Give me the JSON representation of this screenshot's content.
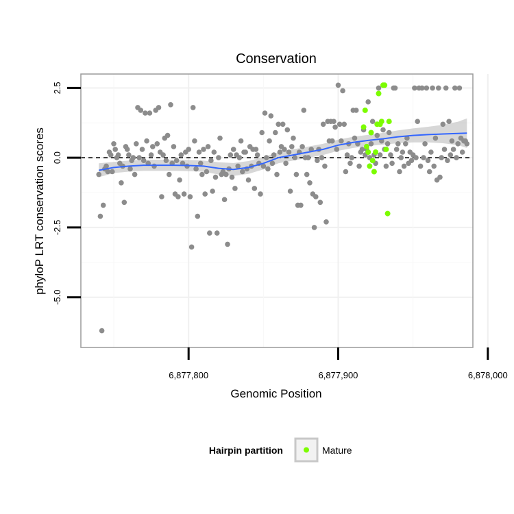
{
  "chart_data": {
    "type": "scatter",
    "title": "Conservation",
    "xlabel": "Genomic Position",
    "ylabel": "phyloP LRT conservation scores",
    "xlim": [
      6877728,
      6877990
    ],
    "ylim": [
      -6.8,
      3.0
    ],
    "x_ticks": [
      6877800,
      6877900,
      6878000
    ],
    "x_tick_labels": [
      "6,877,800",
      "6,877,900",
      "6,878,000"
    ],
    "y_ticks": [
      2.5,
      0.0,
      -2.5,
      -5.0
    ],
    "y_tick_labels": [
      "2.5",
      "0.0",
      "-2.5",
      "-5.0"
    ],
    "grid": true,
    "reference_line": {
      "y": 0,
      "style": "dashed",
      "color": "#000000"
    },
    "legend": {
      "title": "Hairpin partition",
      "position": "bottom",
      "entries": [
        {
          "label": "Mature",
          "color": "#7cfc00"
        }
      ]
    },
    "colors": {
      "background_points": "#8c8c8c",
      "mature_points": "#7cfc00",
      "smooth_line": "#3366ff",
      "confidence_band": "#bdbdbd"
    },
    "series": [
      {
        "role": "background",
        "points": [
          [
            6877740,
            -0.6
          ],
          [
            6877741,
            -2.1
          ],
          [
            6877742,
            -6.2
          ],
          [
            6877743,
            -1.7
          ],
          [
            6877744,
            -0.4
          ],
          [
            6877745,
            -0.3
          ],
          [
            6877746,
            -0.5
          ],
          [
            6877747,
            0.2
          ],
          [
            6877748,
            0.1
          ],
          [
            6877749,
            -0.5
          ],
          [
            6877750,
            0.5
          ],
          [
            6877751,
            0.3
          ],
          [
            6877752,
            0.0
          ],
          [
            6877753,
            0.1
          ],
          [
            6877754,
            -0.2
          ],
          [
            6877755,
            -0.9
          ],
          [
            6877756,
            -0.3
          ],
          [
            6877757,
            -1.6
          ],
          [
            6877758,
            0.4
          ],
          [
            6877759,
            0.3
          ],
          [
            6877760,
            0.1
          ],
          [
            6877761,
            -0.4
          ],
          [
            6877762,
            -0.1
          ],
          [
            6877763,
            0.0
          ],
          [
            6877764,
            -0.6
          ],
          [
            6877765,
            0.5
          ],
          [
            6877766,
            1.8
          ],
          [
            6877767,
            0.0
          ],
          [
            6877768,
            1.7
          ],
          [
            6877769,
            0.3
          ],
          [
            6877770,
            -0.1
          ],
          [
            6877771,
            1.6
          ],
          [
            6877772,
            0.6
          ],
          [
            6877773,
            -0.2
          ],
          [
            6877774,
            1.6
          ],
          [
            6877775,
            0.1
          ],
          [
            6877776,
            0.4
          ],
          [
            6877777,
            -0.3
          ],
          [
            6877778,
            1.7
          ],
          [
            6877779,
            0.5
          ],
          [
            6877780,
            1.8
          ],
          [
            6877781,
            0.2
          ],
          [
            6877782,
            -1.4
          ],
          [
            6877783,
            0.1
          ],
          [
            6877784,
            0.7
          ],
          [
            6877785,
            -0.1
          ],
          [
            6877786,
            0.8
          ],
          [
            6877787,
            -0.6
          ],
          [
            6877788,
            1.9
          ],
          [
            6877789,
            -0.2
          ],
          [
            6877790,
            0.4
          ],
          [
            6877791,
            -1.3
          ],
          [
            6877792,
            -0.1
          ],
          [
            6877793,
            -1.4
          ],
          [
            6877794,
            -0.8
          ],
          [
            6877795,
            0.1
          ],
          [
            6877796,
            -0.2
          ],
          [
            6877797,
            -1.3
          ],
          [
            6877798,
            0.2
          ],
          [
            6877799,
            -0.3
          ],
          [
            6877800,
            0.3
          ],
          [
            6877801,
            -1.4
          ],
          [
            6877802,
            -3.2
          ],
          [
            6877803,
            1.8
          ],
          [
            6877804,
            0.6
          ],
          [
            6877805,
            -0.4
          ],
          [
            6877806,
            -2.1
          ],
          [
            6877807,
            0.2
          ],
          [
            6877808,
            -0.2
          ],
          [
            6877809,
            -0.6
          ],
          [
            6877810,
            0.3
          ],
          [
            6877811,
            -1.3
          ],
          [
            6877812,
            -0.5
          ],
          [
            6877813,
            0.4
          ],
          [
            6877814,
            -2.7
          ],
          [
            6877815,
            -0.1
          ],
          [
            6877816,
            -1.2
          ],
          [
            6877817,
            0.2
          ],
          [
            6877818,
            -0.7
          ],
          [
            6877819,
            -2.7
          ],
          [
            6877820,
            0.0
          ],
          [
            6877821,
            0.7
          ],
          [
            6877822,
            -0.6
          ],
          [
            6877823,
            -0.5
          ],
          [
            6877824,
            -1.5
          ],
          [
            6877825,
            -0.6
          ],
          [
            6877826,
            -3.1
          ],
          [
            6877827,
            -0.4
          ],
          [
            6877828,
            0.1
          ],
          [
            6877829,
            -0.7
          ],
          [
            6877830,
            0.3
          ],
          [
            6877831,
            -1.1
          ],
          [
            6877832,
            0.1
          ],
          [
            6877833,
            -0.3
          ],
          [
            6877834,
            0.0
          ],
          [
            6877835,
            0.6
          ],
          [
            6877836,
            -0.5
          ],
          [
            6877837,
            0.2
          ],
          [
            6877838,
            0.2
          ],
          [
            6877839,
            -0.4
          ],
          [
            6877840,
            -0.8
          ],
          [
            6877841,
            0.4
          ],
          [
            6877842,
            -0.3
          ],
          [
            6877843,
            0.3
          ],
          [
            6877844,
            -1.1
          ],
          [
            6877845,
            0.3
          ],
          [
            6877846,
            0.1
          ],
          [
            6877847,
            -0.2
          ],
          [
            6877848,
            -1.3
          ],
          [
            6877849,
            0.9
          ],
          [
            6877850,
            -0.3
          ],
          [
            6877851,
            1.6
          ],
          [
            6877852,
            0.0
          ],
          [
            6877853,
            -0.4
          ],
          [
            6877854,
            0.6
          ],
          [
            6877855,
            1.5
          ],
          [
            6877856,
            -0.2
          ],
          [
            6877857,
            0.1
          ],
          [
            6877858,
            0.9
          ],
          [
            6877859,
            -0.6
          ],
          [
            6877860,
            1.2
          ],
          [
            6877861,
            0.2
          ],
          [
            6877862,
            0.4
          ],
          [
            6877863,
            1.2
          ],
          [
            6877864,
            0.3
          ],
          [
            6877865,
            -0.2
          ],
          [
            6877866,
            1.0
          ],
          [
            6877867,
            0.2
          ],
          [
            6877868,
            -1.2
          ],
          [
            6877869,
            0.4
          ],
          [
            6877870,
            0.7
          ],
          [
            6877871,
            0.0
          ],
          [
            6877872,
            -0.6
          ],
          [
            6877873,
            -1.7
          ],
          [
            6877874,
            0.2
          ],
          [
            6877875,
            -1.7
          ],
          [
            6877876,
            0.4
          ],
          [
            6877877,
            1.7
          ],
          [
            6877878,
            0.0
          ],
          [
            6877879,
            -0.6
          ],
          [
            6877880,
            0.0
          ],
          [
            6877881,
            -0.9
          ],
          [
            6877882,
            0.3
          ],
          [
            6877883,
            -1.3
          ],
          [
            6877884,
            -2.5
          ],
          [
            6877885,
            -1.4
          ],
          [
            6877886,
            -0.1
          ],
          [
            6877887,
            0.3
          ],
          [
            6877888,
            -1.6
          ],
          [
            6877889,
            0.0
          ],
          [
            6877890,
            1.2
          ],
          [
            6877891,
            -0.3
          ],
          [
            6877892,
            -2.3
          ],
          [
            6877893,
            1.3
          ],
          [
            6877894,
            0.6
          ],
          [
            6877895,
            1.3
          ],
          [
            6877896,
            0.6
          ],
          [
            6877897,
            1.3
          ],
          [
            6877898,
            1.1
          ],
          [
            6877899,
            0.3
          ],
          [
            6877900,
            2.6
          ],
          [
            6877901,
            1.2
          ],
          [
            6877902,
            0.6
          ],
          [
            6877903,
            2.4
          ],
          [
            6877904,
            1.2
          ],
          [
            6877905,
            -0.5
          ],
          [
            6877906,
            0.1
          ],
          [
            6877907,
            0.5
          ],
          [
            6877908,
            -0.2
          ],
          [
            6877909,
            0.0
          ],
          [
            6877910,
            1.7
          ],
          [
            6877911,
            0.7
          ],
          [
            6877912,
            1.7
          ],
          [
            6877913,
            0.5
          ],
          [
            6877914,
            -0.3
          ],
          [
            6877915,
            0.2
          ],
          [
            6877916,
            0.3
          ],
          [
            6877917,
            1.0
          ],
          [
            6877918,
            0.1
          ],
          [
            6877919,
            0.3
          ],
          [
            6877920,
            2.0
          ],
          [
            6877921,
            0.0
          ],
          [
            6877922,
            0.5
          ],
          [
            6877923,
            1.3
          ],
          [
            6877924,
            0.1
          ],
          [
            6877925,
            -0.2
          ],
          [
            6877926,
            0.8
          ],
          [
            6877927,
            2.5
          ],
          [
            6877928,
            0.1
          ],
          [
            6877929,
            0.6
          ],
          [
            6877930,
            1.0
          ],
          [
            6877931,
            0.3
          ],
          [
            6877932,
            -0.3
          ],
          [
            6877933,
            0.5
          ],
          [
            6877934,
            0.9
          ],
          [
            6877935,
            0.1
          ],
          [
            6877936,
            -0.2
          ],
          [
            6877937,
            2.5
          ],
          [
            6877938,
            2.5
          ],
          [
            6877939,
            0.3
          ],
          [
            6877940,
            0.5
          ],
          [
            6877941,
            -0.5
          ],
          [
            6877942,
            0.0
          ],
          [
            6877943,
            0.2
          ],
          [
            6877944,
            -0.3
          ],
          [
            6877945,
            0.5
          ],
          [
            6877946,
            0.7
          ],
          [
            6877947,
            -0.2
          ],
          [
            6877948,
            0.2
          ],
          [
            6877949,
            -0.1
          ],
          [
            6877950,
            0.1
          ],
          [
            6877951,
            2.5
          ],
          [
            6877952,
            0.0
          ],
          [
            6877953,
            1.3
          ],
          [
            6877954,
            2.5
          ],
          [
            6877955,
            -0.3
          ],
          [
            6877956,
            2.5
          ],
          [
            6877957,
            0.0
          ],
          [
            6877958,
            0.5
          ],
          [
            6877959,
            2.5
          ],
          [
            6877960,
            -0.1
          ],
          [
            6877961,
            -0.5
          ],
          [
            6877962,
            0.2
          ],
          [
            6877963,
            2.5
          ],
          [
            6877964,
            -0.3
          ],
          [
            6877965,
            0.7
          ],
          [
            6877966,
            -0.8
          ],
          [
            6877967,
            2.5
          ],
          [
            6877968,
            -0.7
          ],
          [
            6877969,
            0.0
          ],
          [
            6877970,
            1.2
          ],
          [
            6877971,
            0.3
          ],
          [
            6877972,
            2.5
          ],
          [
            6877973,
            -0.1
          ],
          [
            6877974,
            1.3
          ],
          [
            6877975,
            0.1
          ],
          [
            6877976,
            0.6
          ],
          [
            6877977,
            0.3
          ],
          [
            6877978,
            2.5
          ],
          [
            6877979,
            0.0
          ],
          [
            6877980,
            0.5
          ],
          [
            6877981,
            2.5
          ],
          [
            6877982,
            0.7
          ],
          [
            6877983,
            0.2
          ],
          [
            6877984,
            0.6
          ],
          [
            6877985,
            0.6
          ],
          [
            6877986,
            0.5
          ]
        ]
      },
      {
        "name": "Mature",
        "role": "highlight",
        "points": [
          [
            6877917,
            1.1
          ],
          [
            6877918,
            1.7
          ],
          [
            6877919,
            0.4
          ],
          [
            6877920,
            0.2
          ],
          [
            6877921,
            -0.3
          ],
          [
            6877922,
            0.9
          ],
          [
            6877923,
            -0.1
          ],
          [
            6877924,
            -0.5
          ],
          [
            6877925,
            0.2
          ],
          [
            6877926,
            1.2
          ],
          [
            6877927,
            2.3
          ],
          [
            6877928,
            1.2
          ],
          [
            6877929,
            1.3
          ],
          [
            6877930,
            2.6
          ],
          [
            6877931,
            2.6
          ],
          [
            6877932,
            0.3
          ],
          [
            6877933,
            -2.0
          ],
          [
            6877934,
            1.3
          ]
        ]
      }
    ],
    "smooth": {
      "x": [
        6877740,
        6877750,
        6877760,
        6877770,
        6877780,
        6877790,
        6877800,
        6877810,
        6877820,
        6877830,
        6877840,
        6877850,
        6877860,
        6877870,
        6877880,
        6877890,
        6877900,
        6877910,
        6877920,
        6877930,
        6877940,
        6877950,
        6877960,
        6877970,
        6877980,
        6877986
      ],
      "y": [
        -0.45,
        -0.35,
        -0.3,
        -0.27,
        -0.27,
        -0.27,
        -0.28,
        -0.3,
        -0.38,
        -0.42,
        -0.35,
        -0.2,
        0.0,
        0.1,
        0.2,
        0.3,
        0.45,
        0.55,
        0.62,
        0.68,
        0.75,
        0.8,
        0.83,
        0.85,
        0.87,
        0.88
      ],
      "lower": [
        -0.7,
        -0.55,
        -0.5,
        -0.47,
        -0.47,
        -0.47,
        -0.48,
        -0.5,
        -0.6,
        -0.65,
        -0.58,
        -0.42,
        -0.2,
        -0.1,
        0.0,
        0.1,
        0.25,
        0.35,
        0.42,
        0.47,
        0.52,
        0.55,
        0.55,
        0.52,
        0.45,
        0.35
      ],
      "upper": [
        -0.2,
        -0.15,
        -0.1,
        -0.07,
        -0.07,
        -0.07,
        -0.08,
        -0.1,
        -0.16,
        -0.19,
        -0.12,
        0.02,
        0.2,
        0.3,
        0.4,
        0.5,
        0.65,
        0.75,
        0.82,
        0.89,
        0.98,
        1.05,
        1.11,
        1.18,
        1.29,
        1.41
      ]
    }
  }
}
